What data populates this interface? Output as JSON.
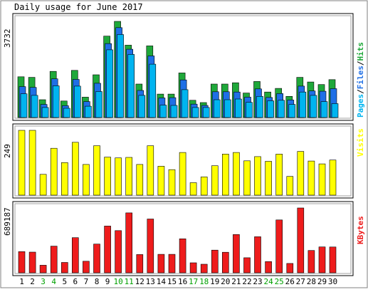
{
  "title": "Daily usage for June 2017",
  "colors": {
    "page_bg": "#ffffff",
    "panel_bg": "#ffffff",
    "hits": "#1fa83a",
    "files": "#1f6fe6",
    "pages": "#00b4f0",
    "visits": "#ffff00",
    "kbytes": "#ee1c1c",
    "weekend_label": "#00a000",
    "weekday_label": "#000000"
  },
  "chart_data": [
    {
      "type": "bar",
      "panel": "hits-files-pages",
      "categories": [
        "1",
        "2",
        "3",
        "4",
        "5",
        "6",
        "7",
        "8",
        "9",
        "10",
        "11",
        "12",
        "13",
        "14",
        "15",
        "16",
        "17",
        "18",
        "19",
        "20",
        "21",
        "22",
        "23",
        "24",
        "25",
        "26",
        "27",
        "28",
        "29",
        "30"
      ],
      "weekend_days": [
        "3",
        "4",
        "10",
        "11",
        "17",
        "18",
        "24",
        "25"
      ],
      "max_label": "3732",
      "ylim": [
        0,
        3732
      ],
      "series": [
        {
          "name": "Hits",
          "values": [
            1580,
            1560,
            690,
            1790,
            640,
            1830,
            790,
            1660,
            3160,
            3732,
            2810,
            1300,
            2780,
            910,
            910,
            1730,
            670,
            580,
            1300,
            1300,
            1350,
            950,
            1400,
            990,
            1130,
            820,
            1560,
            1380,
            1280,
            1470
          ]
        },
        {
          "name": "Files",
          "values": [
            1200,
            1170,
            510,
            1500,
            460,
            1480,
            620,
            1330,
            2870,
            3490,
            2650,
            1050,
            2390,
            760,
            770,
            1460,
            520,
            470,
            1000,
            1000,
            990,
            790,
            1110,
            780,
            930,
            680,
            1220,
            1030,
            1020,
            1120
          ]
        },
        {
          "name": "Pages",
          "values": [
            920,
            860,
            390,
            1230,
            360,
            1220,
            440,
            1010,
            2630,
            3220,
            2450,
            860,
            2070,
            480,
            470,
            1080,
            390,
            390,
            690,
            690,
            720,
            590,
            820,
            650,
            670,
            510,
            990,
            860,
            620,
            540
          ]
        }
      ],
      "legend_words": [
        "Pages",
        "Files",
        "Hits"
      ],
      "legend_separator": "/"
    },
    {
      "type": "bar",
      "panel": "visits",
      "categories": [
        "1",
        "2",
        "3",
        "4",
        "5",
        "6",
        "7",
        "8",
        "9",
        "10",
        "11",
        "12",
        "13",
        "14",
        "15",
        "16",
        "17",
        "18",
        "19",
        "20",
        "21",
        "22",
        "23",
        "24",
        "25",
        "26",
        "27",
        "28",
        "29",
        "30"
      ],
      "max_label": "249",
      "ylim": [
        0,
        249
      ],
      "series": [
        {
          "name": "Visits",
          "values": [
            249,
            249,
            80,
            180,
            125,
            203,
            118,
            190,
            146,
            143,
            145,
            118,
            190,
            111,
            98,
            164,
            48,
            70,
            113,
            158,
            164,
            132,
            148,
            130,
            158,
            72,
            168,
            131,
            120,
            135
          ]
        }
      ]
    },
    {
      "type": "bar",
      "panel": "kbytes",
      "categories": [
        "1",
        "2",
        "3",
        "4",
        "5",
        "6",
        "7",
        "8",
        "9",
        "10",
        "11",
        "12",
        "13",
        "14",
        "15",
        "16",
        "17",
        "18",
        "19",
        "20",
        "21",
        "22",
        "23",
        "24",
        "25",
        "26",
        "27",
        "28",
        "29",
        "30"
      ],
      "max_label": "689187",
      "ylim": [
        0,
        689187
      ],
      "series": [
        {
          "name": "KBytes",
          "values": [
            225000,
            220000,
            80000,
            283000,
            110000,
            373000,
            123000,
            305000,
            497000,
            448000,
            637000,
            194000,
            572000,
            196000,
            196000,
            361000,
            106000,
            91000,
            241000,
            218000,
            407000,
            160000,
            383000,
            119000,
            562000,
            99000,
            689187,
            237000,
            275000,
            274000
          ]
        }
      ]
    }
  ]
}
